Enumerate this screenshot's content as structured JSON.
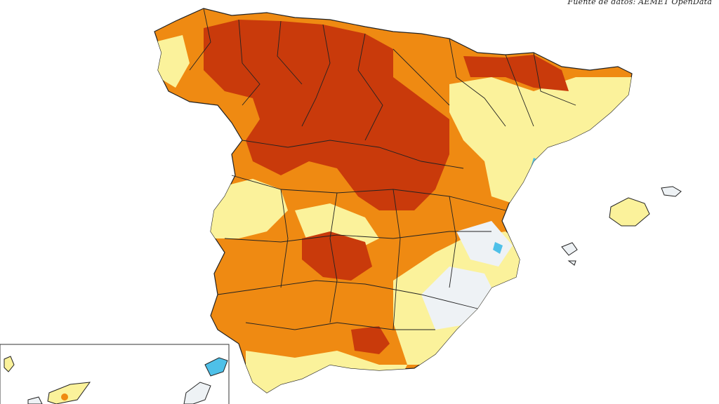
{
  "source_credit": "Fuente de datos: AEMET OpenData",
  "palette": {
    "background": "#ffffff",
    "class_very_high": "#c93a0b",
    "class_high": "#ef8a12",
    "class_moderate": "#f7a93a",
    "class_low": "#fbf29b",
    "class_very_low": "#eef2f5",
    "class_wet": "#4ec0e8",
    "border": "#222222"
  },
  "regions": [
    "peninsula",
    "balearic-islands",
    "canary-islands-inset"
  ]
}
